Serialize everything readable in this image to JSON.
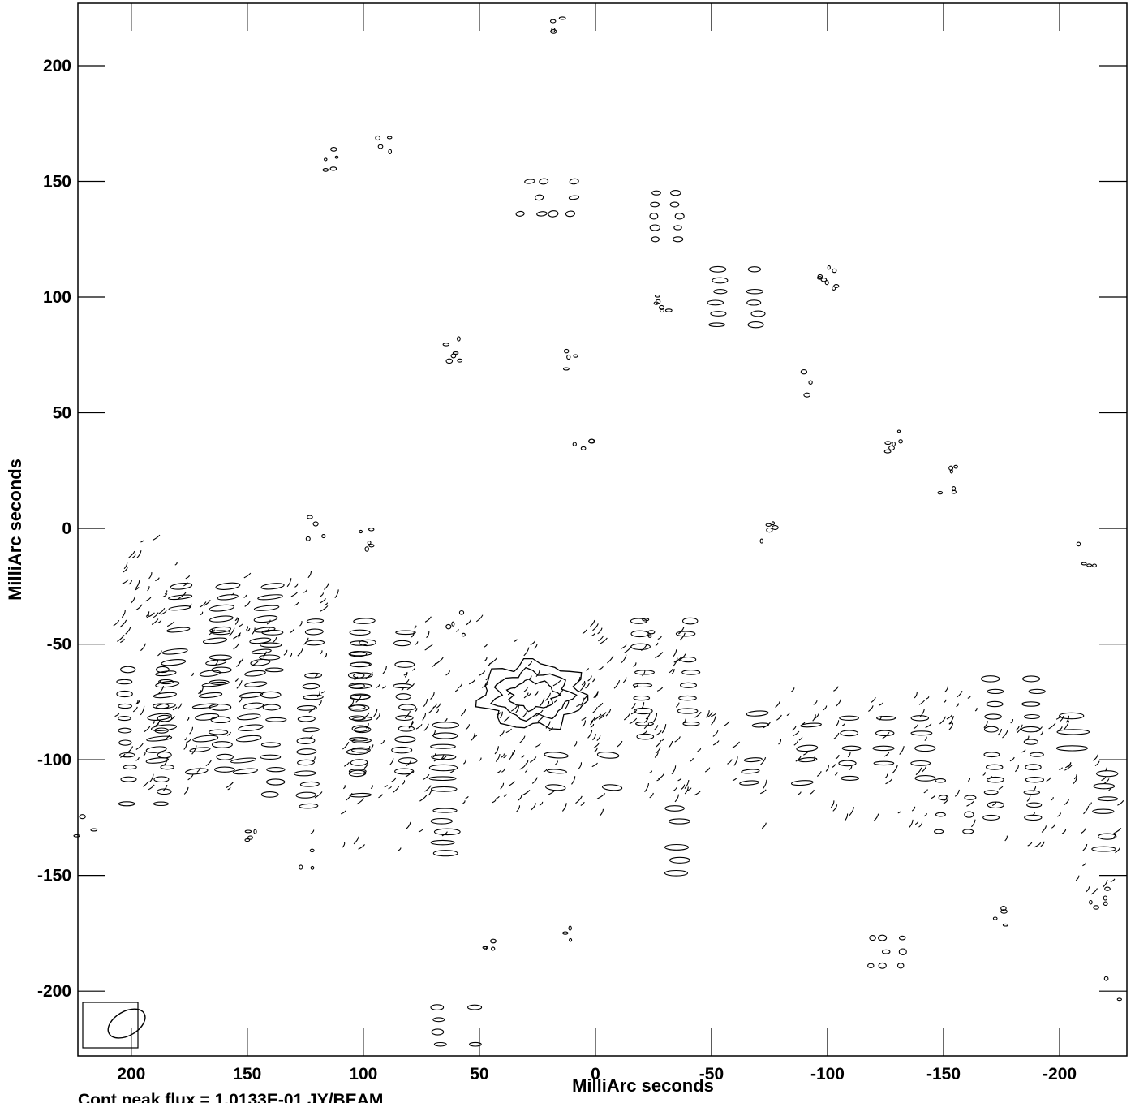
{
  "chart_data": {
    "type": "contour",
    "xlabel": "MilliArc seconds",
    "ylabel": "MilliArc seconds",
    "xlim": [
      223,
      -229
    ],
    "ylim": [
      -228,
      227
    ],
    "x_ticks": [
      200,
      150,
      100,
      50,
      0,
      -50,
      -100,
      -150,
      -200
    ],
    "y_ticks": [
      200,
      150,
      100,
      50,
      0,
      -50,
      -100,
      -150,
      -200
    ],
    "x_tick_labels": [
      "200",
      "150",
      "100",
      "50",
      "0",
      "-50",
      "-100",
      "-150",
      "-200"
    ],
    "y_tick_labels": [
      "200",
      "150",
      "100",
      "50",
      "0",
      "-50",
      "-100",
      "-150",
      "-200"
    ],
    "footer": "Cont peak flux = 1.0133E-01 JY/BEAM",
    "beam": {
      "center": [
        202,
        -214
      ],
      "major": 16,
      "minor": 9,
      "pa_deg": 30
    },
    "central_source": {
      "x": 27,
      "y": -72,
      "levels": [
        {
          "dx": 22,
          "dy": 14,
          "wobble": 2.5
        },
        {
          "dx": 16,
          "dy": 10,
          "wobble": 1.8
        },
        {
          "dx": 10,
          "dy": 6,
          "wobble": 1.2
        }
      ]
    },
    "blob_clusters": [
      {
        "x": 194,
        "y": -90,
        "w": 16,
        "h": 58,
        "rows": 12,
        "cols": 2,
        "slant": 0
      },
      {
        "x": 165,
        "y": -65,
        "w": 38,
        "h": 80,
        "rows": 18,
        "cols": 3,
        "slant": 0.3
      },
      {
        "x": 150,
        "y": -80,
        "w": 22,
        "h": 70,
        "rows": 14,
        "cols": 2,
        "slant": 0
      },
      {
        "x": 112,
        "y": -80,
        "w": 22,
        "h": 80,
        "rows": 18,
        "cols": 2,
        "slant": 0.1
      },
      {
        "x": 92,
        "y": -75,
        "w": 20,
        "h": 60,
        "rows": 14,
        "cols": 2,
        "slant": 0
      },
      {
        "x": 65,
        "y": -115,
        "w": 14,
        "h": 60,
        "rows": 14,
        "cols": 1,
        "slant": 0
      },
      {
        "x": 5,
        "y": -105,
        "w": 24,
        "h": 14,
        "rows": 3,
        "cols": 2,
        "slant": -0.2
      },
      {
        "x": -30,
        "y": -65,
        "w": 20,
        "h": 50,
        "rows": 10,
        "cols": 2,
        "slant": 0
      },
      {
        "x": -35,
        "y": -135,
        "w": 12,
        "h": 28,
        "rows": 6,
        "cols": 1,
        "slant": 0
      },
      {
        "x": -80,
        "y": -95,
        "w": 22,
        "h": 30,
        "rows": 7,
        "cols": 2,
        "slant": 0.2
      },
      {
        "x": -125,
        "y": -95,
        "w": 32,
        "h": 26,
        "rows": 5,
        "cols": 3,
        "slant": 0
      },
      {
        "x": -155,
        "y": -120,
        "w": 12,
        "h": 22,
        "rows": 4,
        "cols": 2,
        "slant": 0
      },
      {
        "x": -180,
        "y": -95,
        "w": 18,
        "h": 60,
        "rows": 12,
        "cols": 2,
        "slant": 0
      },
      {
        "x": -205,
        "y": -88,
        "w": 16,
        "h": 14,
        "rows": 3,
        "cols": 1,
        "slant": 0
      },
      {
        "x": -220,
        "y": -125,
        "w": 12,
        "h": 38,
        "rows": 8,
        "cols": 1,
        "slant": 0
      },
      {
        "x": 60,
        "y": -215,
        "w": 14,
        "h": 16,
        "rows": 4,
        "cols": 2,
        "slant": 0
      },
      {
        "x": -61,
        "y": 100,
        "w": 16,
        "h": 24,
        "rows": 6,
        "cols": 2,
        "slant": 0
      },
      {
        "x": -30,
        "y": 135,
        "w": 10,
        "h": 20,
        "rows": 5,
        "cols": 2,
        "slant": 0
      },
      {
        "x": -125,
        "y": -183,
        "w": 12,
        "h": 12,
        "rows": 3,
        "cols": 3,
        "slant": 0
      },
      {
        "x": 20,
        "y": 143,
        "w": 20,
        "h": 14,
        "rows": 3,
        "cols": 4,
        "slant": 0.3
      }
    ],
    "dash_clusters": [
      {
        "x": 178,
        "y": -70,
        "w": 60,
        "h": 90,
        "n": 70
      },
      {
        "x": 135,
        "y": -40,
        "w": 50,
        "h": 40,
        "n": 35
      },
      {
        "x": 95,
        "y": -100,
        "w": 60,
        "h": 80,
        "n": 60
      },
      {
        "x": 55,
        "y": -80,
        "w": 70,
        "h": 80,
        "n": 75
      },
      {
        "x": 20,
        "y": -95,
        "w": 50,
        "h": 60,
        "n": 60
      },
      {
        "x": -15,
        "y": -70,
        "w": 45,
        "h": 60,
        "n": 55
      },
      {
        "x": -40,
        "y": -100,
        "w": 40,
        "h": 40,
        "n": 40
      },
      {
        "x": -90,
        "y": -100,
        "w": 40,
        "h": 60,
        "n": 40
      },
      {
        "x": -140,
        "y": -100,
        "w": 50,
        "h": 60,
        "n": 45
      },
      {
        "x": -185,
        "y": -110,
        "w": 40,
        "h": 60,
        "n": 40
      },
      {
        "x": -215,
        "y": -130,
        "w": 20,
        "h": 60,
        "n": 22
      },
      {
        "x": 190,
        "y": -25,
        "w": 30,
        "h": 40,
        "n": 28
      }
    ],
    "small_groups": [
      {
        "x": 115,
        "y": 158,
        "n": 5
      },
      {
        "x": 90,
        "y": 167,
        "n": 4
      },
      {
        "x": 15,
        "y": 220,
        "n": 4
      },
      {
        "x": 62,
        "y": 78,
        "n": 6
      },
      {
        "x": 10,
        "y": 74,
        "n": 4
      },
      {
        "x": 5,
        "y": 40,
        "n": 4
      },
      {
        "x": -30,
        "y": 97,
        "n": 6
      },
      {
        "x": -100,
        "y": 107,
        "n": 8
      },
      {
        "x": -90,
        "y": 62,
        "n": 3
      },
      {
        "x": -128,
        "y": 37,
        "n": 6
      },
      {
        "x": -152,
        "y": 21,
        "n": 6
      },
      {
        "x": -75,
        "y": 0,
        "n": 5
      },
      {
        "x": -212,
        "y": -12,
        "n": 4
      },
      {
        "x": -175,
        "y": -167,
        "n": 4
      },
      {
        "x": -217,
        "y": -160,
        "n": 5
      },
      {
        "x": 45,
        "y": -182,
        "n": 4
      },
      {
        "x": 13,
        "y": -177,
        "n": 3
      },
      {
        "x": 125,
        "y": -143,
        "n": 3
      },
      {
        "x": 150,
        "y": -130,
        "n": 4
      },
      {
        "x": 120,
        "y": 0,
        "n": 4
      },
      {
        "x": 100,
        "y": -3,
        "n": 5
      },
      {
        "x": 60,
        "y": -40,
        "n": 4
      },
      {
        "x": -25,
        "y": -43,
        "n": 3
      },
      {
        "x": -222,
        "y": -198,
        "n": 2
      },
      {
        "x": 220,
        "y": -130,
        "n": 3
      }
    ]
  }
}
